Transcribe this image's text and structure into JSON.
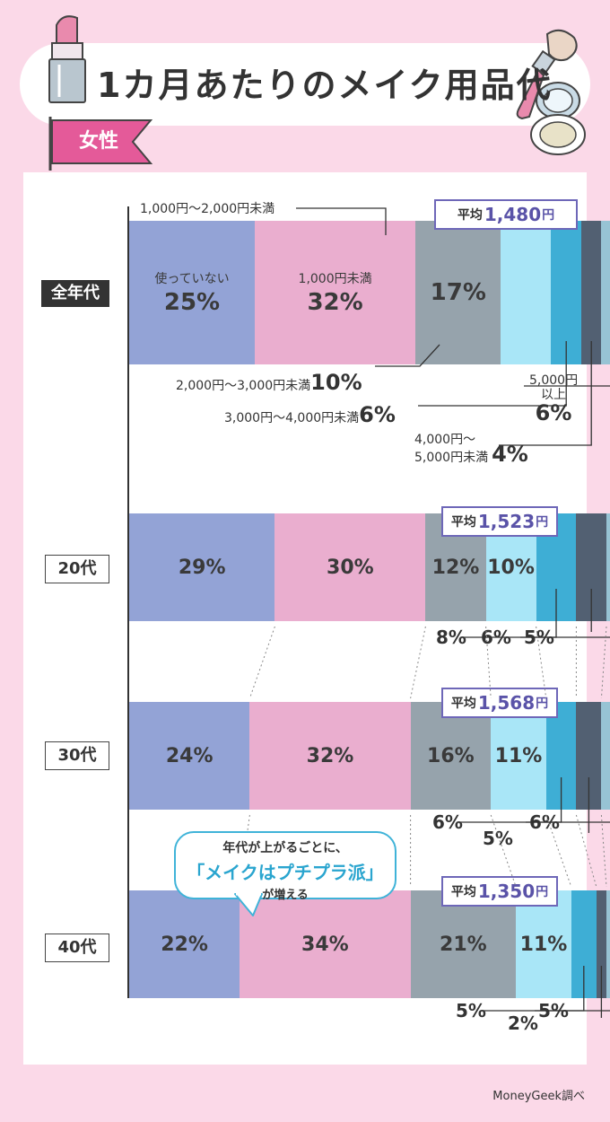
{
  "title": "1カ月あたりのメイク用品代",
  "badge": "女性",
  "source": "MoneyGeek調べ",
  "avg_label": "平均",
  "avg_unit": "円",
  "bubble": {
    "line1": "年代が上がるごとに、",
    "line2": "「メイクはプチプラ派」",
    "line3": "が増える"
  },
  "colors": {
    "background": "#fbd9e8",
    "avg_border": "#6e67b8",
    "bubble_border": "#3fb3d8",
    "segments": [
      "#93a3d6",
      "#eaaecf",
      "#96a3ac",
      "#a9e6f7",
      "#3eaed5",
      "#526072",
      "#97c3d4"
    ]
  },
  "callouts": {
    "c1": "1,000円〜2,000円未満",
    "c2_text": "2,000円〜3,000円未満",
    "c2_pct": "10%",
    "c3_text": "3,000円〜4,000円未満",
    "c3_pct": "6%",
    "c4_line1": "4,000円〜",
    "c4_line2": "5,000円未満",
    "c4_pct": "4%",
    "c5_line1": "5,000円",
    "c5_line2": "以上",
    "c5_pct": "6%"
  },
  "chart_data": {
    "type": "bar",
    "orientation": "horizontal-stacked",
    "title": "1カ月あたりのメイク用品代",
    "categories": [
      "全年代",
      "20代",
      "30代",
      "40代"
    ],
    "series": [
      {
        "name": "使っていない",
        "values": [
          25,
          29,
          24,
          22
        ]
      },
      {
        "name": "1,000円未満",
        "values": [
          32,
          30,
          32,
          34
        ]
      },
      {
        "name": "1,000円〜2,000円未満",
        "values": [
          17,
          12,
          16,
          21
        ]
      },
      {
        "name": "2,000円〜3,000円未満",
        "values": [
          10,
          10,
          11,
          11
        ]
      },
      {
        "name": "3,000円〜4,000円未満",
        "values": [
          6,
          8,
          6,
          5
        ]
      },
      {
        "name": "4,000円〜5,000円未満",
        "values": [
          4,
          6,
          5,
          2
        ]
      },
      {
        "name": "5,000円以上",
        "values": [
          6,
          5,
          6,
          5
        ]
      }
    ],
    "labels": [
      [
        "25%",
        "32%",
        "17%",
        "10%",
        "6%",
        "4%",
        "6%"
      ],
      [
        "29%",
        "30%",
        "12%",
        "10%",
        "8%",
        "6%",
        "5%"
      ],
      [
        "24%",
        "32%",
        "16%",
        "11%",
        "6%",
        "5%",
        "6%"
      ],
      [
        "22%",
        "34%",
        "21%",
        "11%",
        "5%",
        "2%",
        "5%"
      ]
    ],
    "averages": [
      "1,480",
      "1,523",
      "1,568",
      "1,350"
    ]
  }
}
